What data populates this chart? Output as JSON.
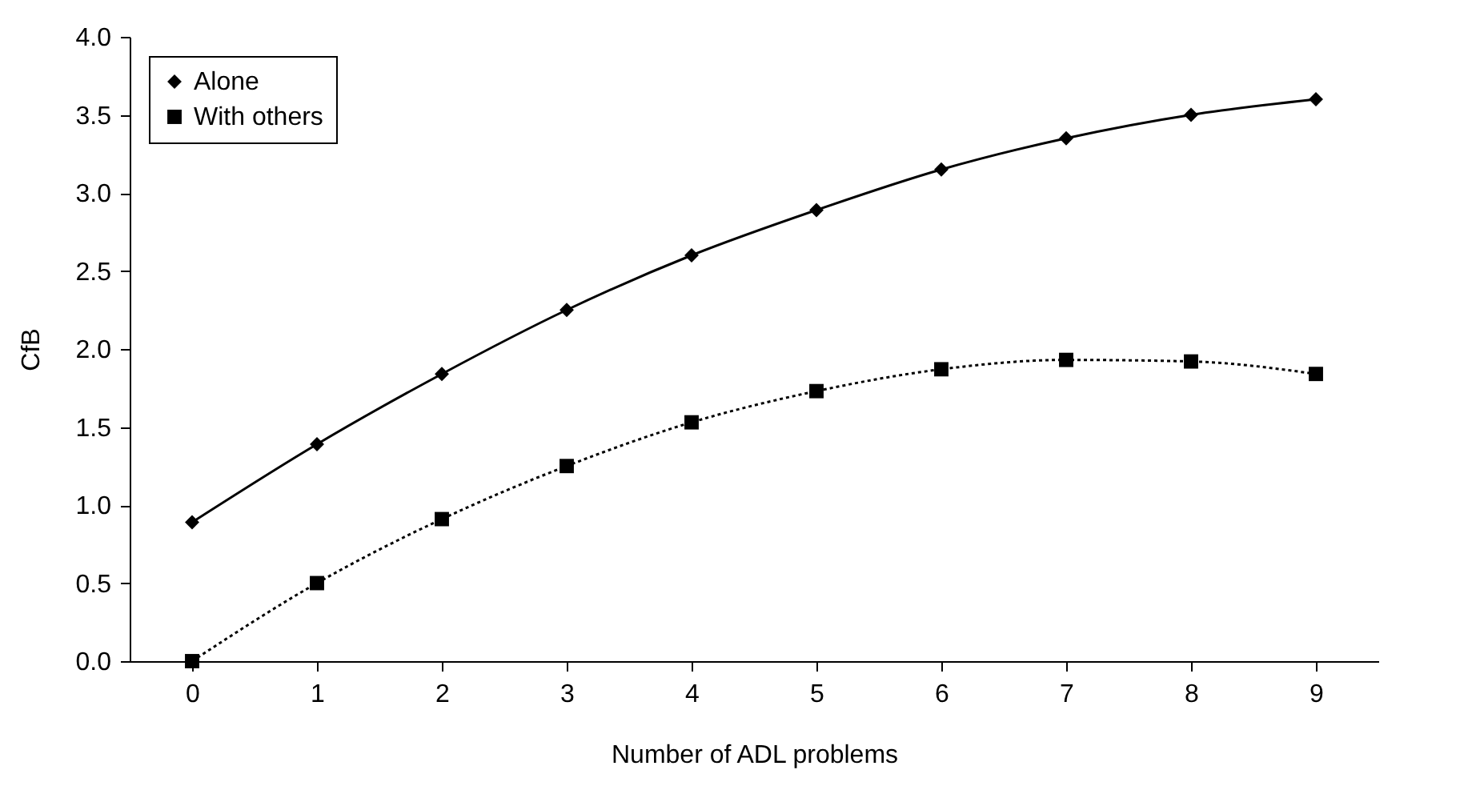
{
  "chart_data": {
    "type": "line",
    "xlabel": "Number of ADL problems",
    "ylabel": "CfB",
    "categories": [
      "0",
      "1",
      "2",
      "3",
      "4",
      "5",
      "6",
      "7",
      "8",
      "9"
    ],
    "series": [
      {
        "name": "Alone",
        "color": "#000000",
        "marker": "diamond",
        "line_style": "solid",
        "values": [
          0.89,
          1.39,
          1.84,
          2.25,
          2.6,
          2.89,
          3.15,
          3.35,
          3.5,
          3.6
        ]
      },
      {
        "name": "With others",
        "color": "#000000",
        "marker": "square",
        "line_style": "dotted",
        "values": [
          0.0,
          0.5,
          0.91,
          1.25,
          1.53,
          1.73,
          1.87,
          1.93,
          1.92,
          1.84
        ]
      }
    ],
    "ylim": [
      0,
      4
    ],
    "yticks": [
      {
        "value": 0,
        "label": "0.0"
      },
      {
        "value": 0.5,
        "label": "0.5"
      },
      {
        "value": 1,
        "label": "1.0"
      },
      {
        "value": 1.5,
        "label": "1.5"
      },
      {
        "value": 2,
        "label": "2.0"
      },
      {
        "value": 2.5,
        "label": "2.5"
      },
      {
        "value": 3,
        "label": "3.0"
      },
      {
        "value": 3.5,
        "label": "3.5"
      },
      {
        "value": 4,
        "label": "4.0"
      }
    ],
    "grid": false,
    "legend": "top left"
  }
}
